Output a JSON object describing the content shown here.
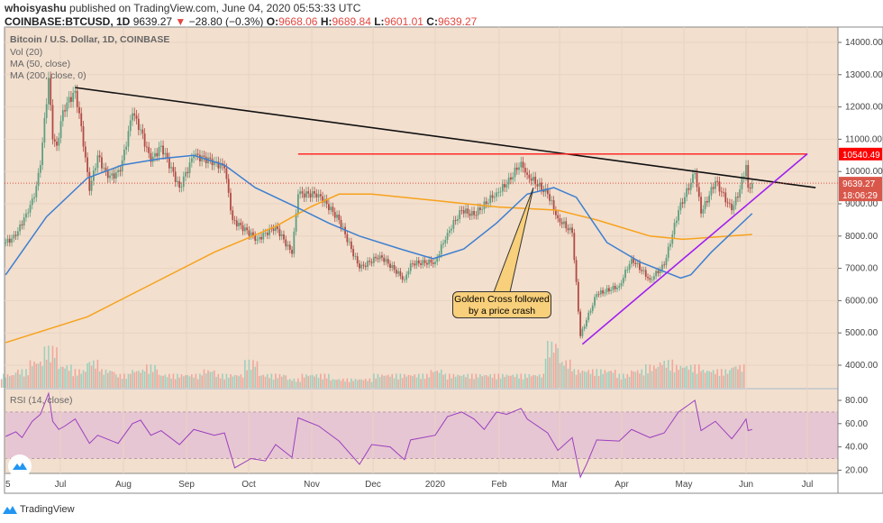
{
  "header": {
    "author": "whoisyashu",
    "published_text": "published on TradingView.com, June 04, 2020 05:53:33 UTC",
    "symbol": "COINBASE:BTCUSD, 1D",
    "last": "9639.27",
    "change": "−28.80 (−0.3%)",
    "direction_icon": "triangle-down-icon",
    "open_label": "O:",
    "open": "9668.06",
    "high_label": "H:",
    "high": "9689.84",
    "low_label": "L:",
    "low": "9601.01",
    "close_label": "C:",
    "close": "9639.27"
  },
  "legend": {
    "title": "Bitcoin / U.S. Dollar, 1D, COINBASE",
    "vol": "Vol (20)",
    "ma50": "MA (50, close)",
    "ma200": "MA (200, close, 0)",
    "rsi": "RSI (14, close)"
  },
  "annotation": {
    "line1": "Golden Cross followed",
    "line2": "by a price crash"
  },
  "price_tags": {
    "resistance": "10540.49",
    "last": "9639.27",
    "countdown": "18:06:29"
  },
  "branding": {
    "name": "TradingView"
  },
  "colors": {
    "background": "#f2dfce",
    "up": "#5f9f80",
    "down": "#b04b45",
    "ma50": "#3d7fd0",
    "ma200": "#f7a21b",
    "rsi": "#9b3fc0",
    "resistance": "#ff1a1a",
    "support": "#a020f0",
    "trend": "#111111",
    "callout": "#f8cf7a"
  },
  "chart_data": [
    {
      "type": "candlestick",
      "title": "Bitcoin / U.S. Dollar, 1D, COINBASE",
      "y_scale": "linear",
      "ylim": [
        3500,
        14500
      ],
      "yticks": [
        "4000.00",
        "5000.00",
        "6000.00",
        "7000.00",
        "8000.00",
        "9000.00",
        "10000.00",
        "11000.00",
        "12000.00",
        "13000.00",
        "14000.00"
      ],
      "xticks": [
        "5",
        "Jul",
        "Aug",
        "Sep",
        "Oct",
        "Nov",
        "Dec",
        "2020",
        "Feb",
        "Mar",
        "Apr",
        "May",
        "Jun",
        "Jul"
      ],
      "grid": true,
      "close": [
        [
          "2019-06-05",
          7800
        ],
        [
          "2019-06-10",
          8000
        ],
        [
          "2019-06-15",
          8700
        ],
        [
          "2019-06-19",
          9200
        ],
        [
          "2019-06-22",
          10200
        ],
        [
          "2019-06-26",
          12900
        ],
        [
          "2019-06-28",
          11000
        ],
        [
          "2019-06-30",
          10800
        ],
        [
          "2019-07-03",
          11900
        ],
        [
          "2019-07-09",
          12500
        ],
        [
          "2019-07-12",
          11400
        ],
        [
          "2019-07-16",
          9400
        ],
        [
          "2019-07-20",
          10500
        ],
        [
          "2019-07-25",
          9800
        ],
        [
          "2019-07-31",
          10000
        ],
        [
          "2019-08-06",
          11800
        ],
        [
          "2019-08-10",
          11300
        ],
        [
          "2019-08-15",
          10300
        ],
        [
          "2019-08-20",
          10800
        ],
        [
          "2019-08-29",
          9500
        ],
        [
          "2019-09-05",
          10500
        ],
        [
          "2019-09-15",
          10300
        ],
        [
          "2019-09-20",
          10100
        ],
        [
          "2019-09-24",
          8500
        ],
        [
          "2019-10-06",
          7900
        ],
        [
          "2019-10-15",
          8300
        ],
        [
          "2019-10-23",
          7450
        ],
        [
          "2019-10-26",
          9300
        ],
        [
          "2019-11-05",
          9300
        ],
        [
          "2019-11-15",
          8500
        ],
        [
          "2019-11-25",
          7000
        ],
        [
          "2019-12-05",
          7400
        ],
        [
          "2019-12-17",
          6650
        ],
        [
          "2019-12-20",
          7150
        ],
        [
          "2020-01-01",
          7200
        ],
        [
          "2020-01-07",
          8100
        ],
        [
          "2020-01-14",
          8800
        ],
        [
          "2020-01-20",
          8650
        ],
        [
          "2020-01-31",
          9350
        ],
        [
          "2020-02-05",
          9600
        ],
        [
          "2020-02-12",
          10300
        ],
        [
          "2020-02-15",
          9900
        ],
        [
          "2020-02-25",
          9300
        ],
        [
          "2020-03-01",
          8550
        ],
        [
          "2020-03-08",
          8100
        ],
        [
          "2020-03-12",
          4900
        ],
        [
          "2020-03-15",
          5400
        ],
        [
          "2020-03-20",
          6200
        ],
        [
          "2020-03-31",
          6450
        ],
        [
          "2020-04-06",
          7300
        ],
        [
          "2020-04-15",
          6650
        ],
        [
          "2020-04-22",
          7100
        ],
        [
          "2020-04-29",
          8800
        ],
        [
          "2020-05-07",
          9950
        ],
        [
          "2020-05-10",
          8700
        ],
        [
          "2020-05-17",
          9700
        ],
        [
          "2020-05-25",
          8800
        ],
        [
          "2020-05-29",
          9450
        ],
        [
          "2020-06-01",
          10200
        ],
        [
          "2020-06-02",
          9500
        ],
        [
          "2020-06-04",
          9639
        ]
      ],
      "ma50": [
        [
          "2019-06-05",
          6800
        ],
        [
          "2019-06-25",
          8600
        ],
        [
          "2019-07-15",
          9800
        ],
        [
          "2019-08-01",
          10200
        ],
        [
          "2019-08-20",
          10400
        ],
        [
          "2019-09-05",
          10500
        ],
        [
          "2019-09-20",
          10200
        ],
        [
          "2019-10-05",
          9500
        ],
        [
          "2019-10-25",
          8900
        ],
        [
          "2019-11-10",
          8400
        ],
        [
          "2019-11-25",
          8000
        ],
        [
          "2019-12-15",
          7600
        ],
        [
          "2019-12-31",
          7300
        ],
        [
          "2020-01-15",
          7600
        ],
        [
          "2020-01-31",
          8400
        ],
        [
          "2020-02-15",
          9300
        ],
        [
          "2020-02-28",
          9500
        ],
        [
          "2020-03-10",
          9200
        ],
        [
          "2020-03-25",
          7800
        ],
        [
          "2020-04-10",
          7200
        ],
        [
          "2020-04-30",
          6700
        ],
        [
          "2020-05-05",
          6800
        ],
        [
          "2020-05-15",
          7500
        ],
        [
          "2020-05-25",
          8100
        ],
        [
          "2020-06-04",
          8700
        ]
      ],
      "ma200": [
        [
          "2019-06-05",
          4700
        ],
        [
          "2019-07-15",
          5500
        ],
        [
          "2019-08-15",
          6500
        ],
        [
          "2019-09-15",
          7500
        ],
        [
          "2019-10-15",
          8300
        ],
        [
          "2019-11-01",
          8900
        ],
        [
          "2019-11-15",
          9300
        ],
        [
          "2019-12-01",
          9300
        ],
        [
          "2020-01-01",
          9100
        ],
        [
          "2020-02-01",
          8900
        ],
        [
          "2020-03-01",
          8800
        ],
        [
          "2020-03-20",
          8500
        ],
        [
          "2020-04-15",
          8000
        ],
        [
          "2020-05-01",
          7900
        ],
        [
          "2020-06-04",
          8050
        ]
      ],
      "trendlines": {
        "descending": [
          [
            "2019-07-09",
            12600
          ],
          [
            "2020-07-05",
            9500
          ]
        ],
        "resistance": [
          [
            "2019-10-26",
            10540.49
          ],
          [
            "2020-07-01",
            10540.49
          ]
        ],
        "support": [
          [
            "2020-03-13",
            4650
          ],
          [
            "2020-07-01",
            10550
          ]
        ]
      },
      "volume_weekly": [
        3,
        4,
        6,
        9,
        5,
        4,
        6,
        4,
        3,
        4,
        5,
        3,
        3,
        3,
        4,
        3,
        3,
        6,
        3,
        3,
        2,
        3,
        3,
        2,
        2,
        2,
        3,
        3,
        3,
        3,
        4,
        3,
        3,
        3,
        3,
        3,
        3,
        3,
        10,
        6,
        4,
        4,
        4,
        3,
        4,
        5,
        6,
        5,
        5,
        4,
        4,
        5
      ]
    },
    {
      "type": "line",
      "title": "RSI (14, close)",
      "ylim": [
        10,
        90
      ],
      "yticks": [
        "20.00",
        "40.00",
        "60.00",
        "80.00"
      ],
      "band": [
        30,
        70
      ],
      "values": [
        [
          "2019-06-05",
          49
        ],
        [
          "2019-06-10",
          53
        ],
        [
          "2019-06-13",
          48
        ],
        [
          "2019-06-18",
          62
        ],
        [
          "2019-06-22",
          68
        ],
        [
          "2019-06-26",
          86
        ],
        [
          "2019-06-28",
          62
        ],
        [
          "2019-07-01",
          55
        ],
        [
          "2019-07-04",
          58
        ],
        [
          "2019-07-09",
          64
        ],
        [
          "2019-07-16",
          43
        ],
        [
          "2019-07-20",
          50
        ],
        [
          "2019-07-30",
          43
        ],
        [
          "2019-08-06",
          60
        ],
        [
          "2019-08-10",
          63
        ],
        [
          "2019-08-15",
          50
        ],
        [
          "2019-08-20",
          54
        ],
        [
          "2019-08-29",
          42
        ],
        [
          "2019-09-05",
          55
        ],
        [
          "2019-09-15",
          50
        ],
        [
          "2019-09-20",
          52
        ],
        [
          "2019-09-25",
          22
        ],
        [
          "2019-10-03",
          30
        ],
        [
          "2019-10-10",
          28
        ],
        [
          "2019-10-15",
          42
        ],
        [
          "2019-10-23",
          31
        ],
        [
          "2019-10-26",
          65
        ],
        [
          "2019-11-05",
          58
        ],
        [
          "2019-11-15",
          45
        ],
        [
          "2019-11-25",
          25
        ],
        [
          "2019-12-01",
          42
        ],
        [
          "2019-12-10",
          40
        ],
        [
          "2019-12-17",
          29
        ],
        [
          "2019-12-20",
          46
        ],
        [
          "2020-01-01",
          50
        ],
        [
          "2020-01-07",
          66
        ],
        [
          "2020-01-14",
          70
        ],
        [
          "2020-01-20",
          64
        ],
        [
          "2020-01-25",
          55
        ],
        [
          "2020-01-31",
          70
        ],
        [
          "2020-02-05",
          68
        ],
        [
          "2020-02-12",
          73
        ],
        [
          "2020-02-15",
          64
        ],
        [
          "2020-02-25",
          52
        ],
        [
          "2020-03-01",
          37
        ],
        [
          "2020-03-08",
          48
        ],
        [
          "2020-03-12",
          14
        ],
        [
          "2020-03-15",
          25
        ],
        [
          "2020-03-20",
          46
        ],
        [
          "2020-03-31",
          45
        ],
        [
          "2020-04-06",
          55
        ],
        [
          "2020-04-15",
          48
        ],
        [
          "2020-04-22",
          52
        ],
        [
          "2020-04-29",
          70
        ],
        [
          "2020-05-07",
          80
        ],
        [
          "2020-05-10",
          54
        ],
        [
          "2020-05-17",
          62
        ],
        [
          "2020-05-25",
          47
        ],
        [
          "2020-05-29",
          56
        ],
        [
          "2020-06-01",
          64
        ],
        [
          "2020-06-02",
          54
        ],
        [
          "2020-06-04",
          55
        ]
      ]
    }
  ]
}
